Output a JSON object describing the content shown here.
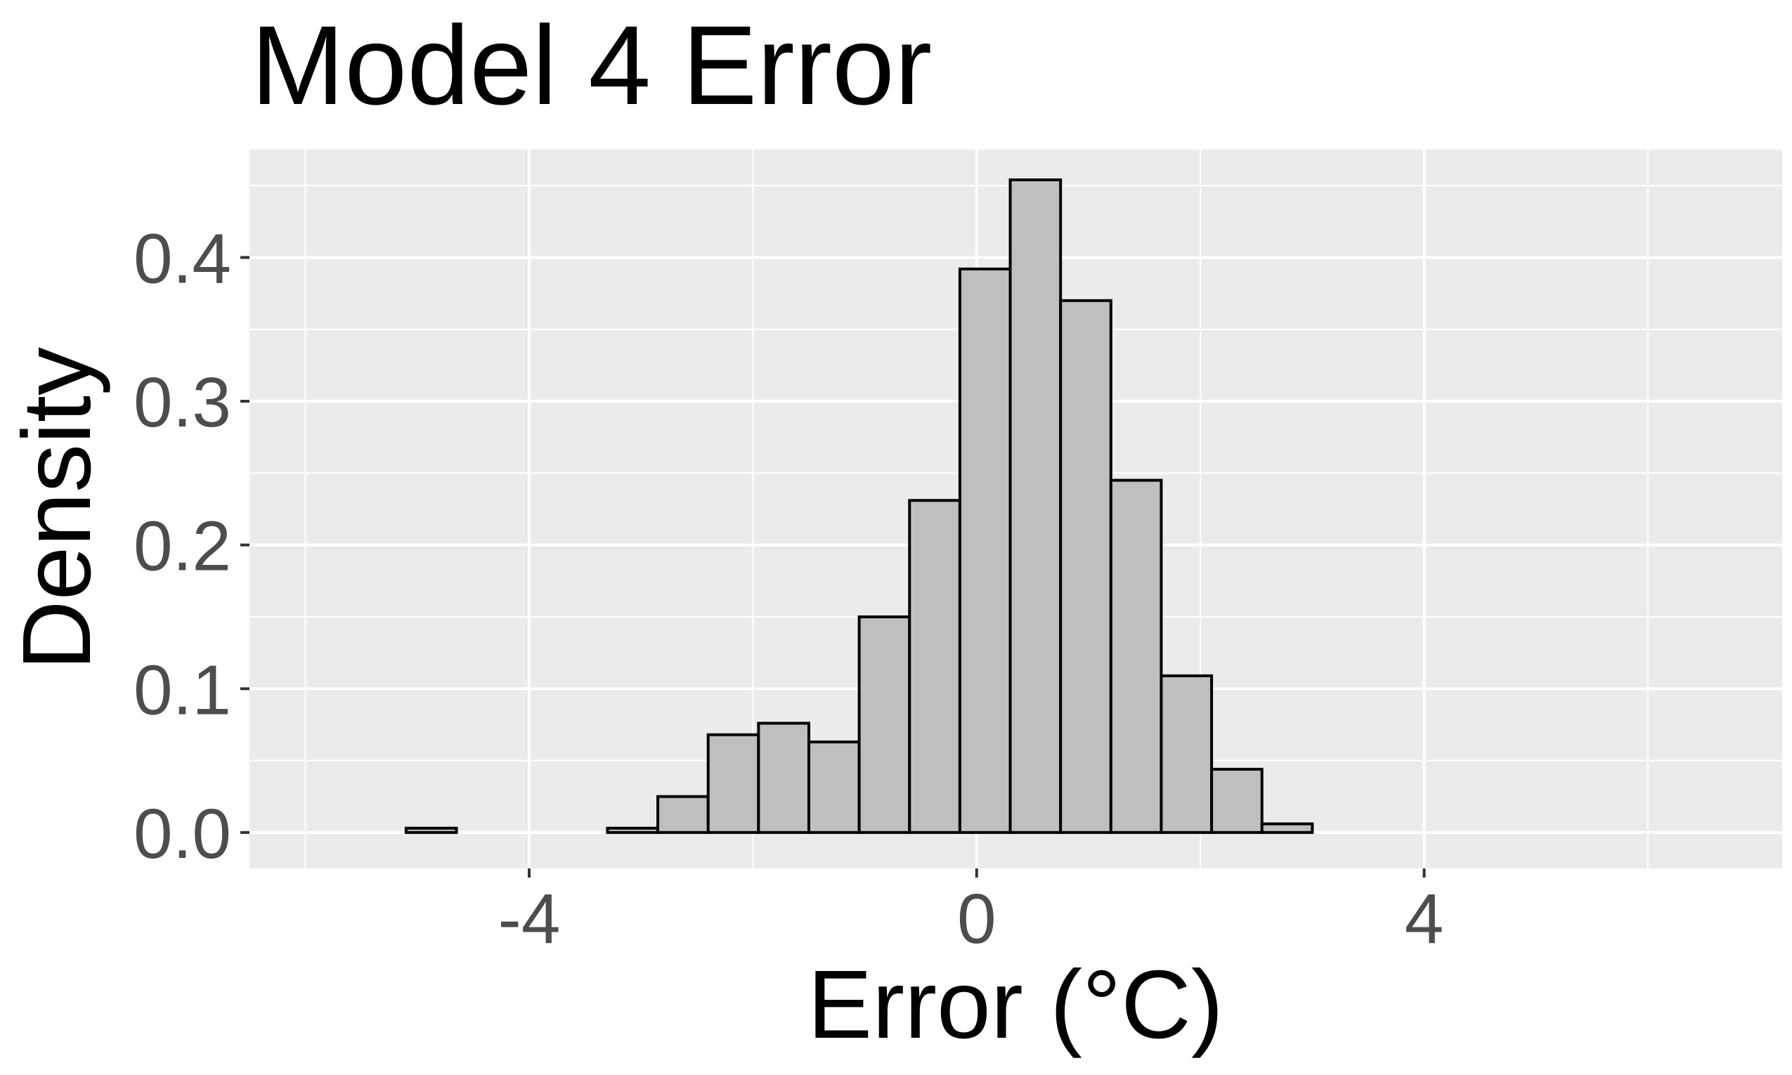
{
  "chart_data": {
    "type": "bar",
    "title": "Model 4 Error",
    "xlabel": "Error (°C)",
    "ylabel": "Density",
    "xlim": [
      -6.5,
      7.2
    ],
    "ylim": [
      -0.025,
      0.475
    ],
    "x_ticks": [
      -4,
      0,
      4
    ],
    "x_tick_labels": [
      "-4",
      "0",
      "4"
    ],
    "y_ticks": [
      0.0,
      0.1,
      0.2,
      0.3,
      0.4
    ],
    "y_tick_labels": [
      "0.0",
      "0.1",
      "0.2",
      "0.3",
      "0.4"
    ],
    "grid": true,
    "legend": "none",
    "colors": {
      "panel_background": "#ebebeb",
      "grid": "#ffffff",
      "bar_fill": "#bfbfbf",
      "bar_outline": "#000000",
      "tick_label": "#4d4d4d",
      "title": "#000000"
    },
    "bin_width": 0.45,
    "bins": [
      {
        "x0": -6.45,
        "x1": -6.0,
        "density": 0.0
      },
      {
        "x0": -6.0,
        "x1": -5.55,
        "density": 0.0
      },
      {
        "x0": -5.55,
        "x1": -5.1,
        "density": 0.0
      },
      {
        "x0": -5.1,
        "x1": -4.65,
        "density": 0.003
      },
      {
        "x0": -4.65,
        "x1": -4.2,
        "density": 0.0
      },
      {
        "x0": -4.2,
        "x1": -3.75,
        "density": 0.0
      },
      {
        "x0": -3.75,
        "x1": -3.3,
        "density": 0.0
      },
      {
        "x0": -3.3,
        "x1": -2.85,
        "density": 0.003
      },
      {
        "x0": -2.85,
        "x1": -2.4,
        "density": 0.025
      },
      {
        "x0": -2.4,
        "x1": -1.95,
        "density": 0.068
      },
      {
        "x0": -1.95,
        "x1": -1.5,
        "density": 0.076
      },
      {
        "x0": -1.5,
        "x1": -1.05,
        "density": 0.063
      },
      {
        "x0": -1.05,
        "x1": -0.6,
        "density": 0.15
      },
      {
        "x0": -0.6,
        "x1": -0.15,
        "density": 0.231
      },
      {
        "x0": -0.15,
        "x1": 0.3,
        "density": 0.392
      },
      {
        "x0": 0.3,
        "x1": 0.75,
        "density": 0.454
      },
      {
        "x0": 0.75,
        "x1": 1.2,
        "density": 0.37
      },
      {
        "x0": 1.2,
        "x1": 1.65,
        "density": 0.245
      },
      {
        "x0": 1.65,
        "x1": 2.1,
        "density": 0.109
      },
      {
        "x0": 2.1,
        "x1": 2.55,
        "density": 0.044
      },
      {
        "x0": 2.55,
        "x1": 3.0,
        "density": 0.006
      },
      {
        "x0": 3.0,
        "x1": 3.45,
        "density": 0.0
      },
      {
        "x0": 3.45,
        "x1": 3.9,
        "density": 0.0
      },
      {
        "x0": 3.9,
        "x1": 4.35,
        "density": 0.0
      },
      {
        "x0": 4.35,
        "x1": 4.8,
        "density": 0.0
      },
      {
        "x0": 4.8,
        "x1": 5.25,
        "density": 0.0
      },
      {
        "x0": 5.25,
        "x1": 5.7,
        "density": 0.0
      },
      {
        "x0": 5.7,
        "x1": 6.15,
        "density": 0.0
      },
      {
        "x0": 6.15,
        "x1": 6.6,
        "density": 0.0
      },
      {
        "x0": 6.6,
        "x1": 7.05,
        "density": 0.0
      }
    ]
  }
}
